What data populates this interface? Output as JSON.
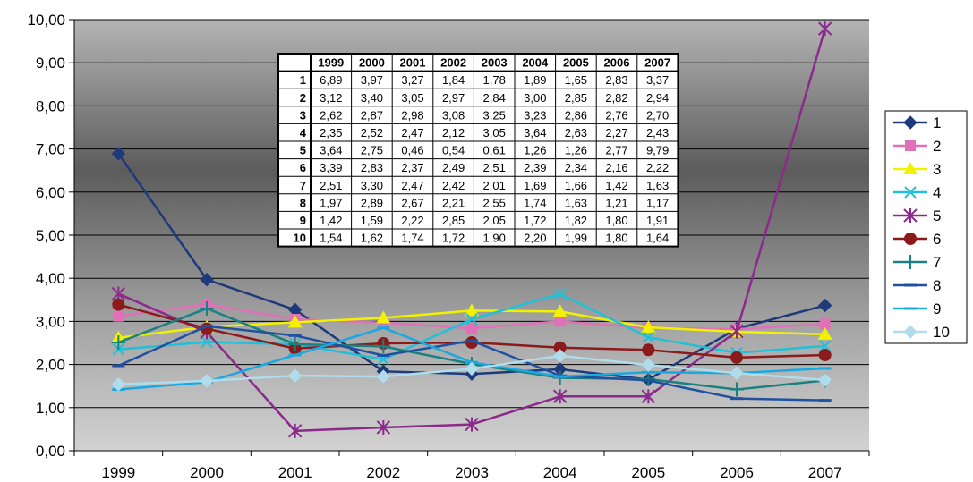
{
  "chart_data": {
    "type": "line",
    "categories": [
      "1999",
      "2000",
      "2001",
      "2002",
      "2003",
      "2004",
      "2005",
      "2006",
      "2007"
    ],
    "ylim": [
      0,
      10
    ],
    "yticks": [
      "0,00",
      "1,00",
      "2,00",
      "3,00",
      "4,00",
      "5,00",
      "6,00",
      "7,00",
      "8,00",
      "9,00",
      "10,00"
    ],
    "grid": true,
    "legend_position": "right",
    "series": [
      {
        "name": "1",
        "color": "#1F3A7A",
        "marker": "diamond",
        "values": [
          6.89,
          3.97,
          3.27,
          1.84,
          1.78,
          1.89,
          1.65,
          2.83,
          3.37
        ]
      },
      {
        "name": "2",
        "color": "#E070B8",
        "marker": "square",
        "values": [
          3.12,
          3.4,
          3.05,
          2.97,
          2.84,
          3.0,
          2.85,
          2.82,
          2.94
        ]
      },
      {
        "name": "3",
        "color": "#F2F200",
        "marker": "triangle",
        "values": [
          2.62,
          2.87,
          2.98,
          3.08,
          3.25,
          3.23,
          2.86,
          2.76,
          2.7
        ]
      },
      {
        "name": "4",
        "color": "#20C0D8",
        "marker": "x",
        "values": [
          2.35,
          2.52,
          2.47,
          2.12,
          3.05,
          3.64,
          2.63,
          2.27,
          2.43
        ]
      },
      {
        "name": "5",
        "color": "#8B2A8B",
        "marker": "asterisk",
        "values": [
          3.64,
          2.75,
          0.46,
          0.54,
          0.61,
          1.26,
          1.26,
          2.77,
          9.79
        ]
      },
      {
        "name": "6",
        "color": "#8B1A1A",
        "marker": "circle",
        "values": [
          3.39,
          2.83,
          2.37,
          2.49,
          2.51,
          2.39,
          2.34,
          2.16,
          2.22
        ]
      },
      {
        "name": "7",
        "color": "#1A8080",
        "marker": "plus",
        "values": [
          2.51,
          3.3,
          2.47,
          2.42,
          2.01,
          1.69,
          1.66,
          1.42,
          1.63
        ]
      },
      {
        "name": "8",
        "color": "#2050A0",
        "marker": "dash",
        "values": [
          1.97,
          2.89,
          2.67,
          2.21,
          2.55,
          1.74,
          1.63,
          1.21,
          1.17
        ]
      },
      {
        "name": "9",
        "color": "#1AA8E0",
        "marker": "dash",
        "values": [
          1.42,
          1.59,
          2.22,
          2.85,
          2.05,
          1.72,
          1.82,
          1.8,
          1.91
        ]
      },
      {
        "name": "10",
        "color": "#B0DCEB",
        "marker": "diamond",
        "values": [
          1.54,
          1.62,
          1.74,
          1.72,
          1.9,
          2.2,
          1.99,
          1.8,
          1.64
        ]
      }
    ],
    "table": {
      "header": [
        "",
        "1999",
        "2000",
        "2001",
        "2002",
        "2003",
        "2004",
        "2005",
        "2006",
        "2007"
      ],
      "rows": [
        [
          "1",
          "6,89",
          "3,97",
          "3,27",
          "1,84",
          "1,78",
          "1,89",
          "1,65",
          "2,83",
          "3,37"
        ],
        [
          "2",
          "3,12",
          "3,40",
          "3,05",
          "2,97",
          "2,84",
          "3,00",
          "2,85",
          "2,82",
          "2,94"
        ],
        [
          "3",
          "2,62",
          "2,87",
          "2,98",
          "3,08",
          "3,25",
          "3,23",
          "2,86",
          "2,76",
          "2,70"
        ],
        [
          "4",
          "2,35",
          "2,52",
          "2,47",
          "2,12",
          "3,05",
          "3,64",
          "2,63",
          "2,27",
          "2,43"
        ],
        [
          "5",
          "3,64",
          "2,75",
          "0,46",
          "0,54",
          "0,61",
          "1,26",
          "1,26",
          "2,77",
          "9,79"
        ],
        [
          "6",
          "3,39",
          "2,83",
          "2,37",
          "2,49",
          "2,51",
          "2,39",
          "2,34",
          "2,16",
          "2,22"
        ],
        [
          "7",
          "2,51",
          "3,30",
          "2,47",
          "2,42",
          "2,01",
          "1,69",
          "1,66",
          "1,42",
          "1,63"
        ],
        [
          "8",
          "1,97",
          "2,89",
          "2,67",
          "2,21",
          "2,55",
          "1,74",
          "1,63",
          "1,21",
          "1,17"
        ],
        [
          "9",
          "1,42",
          "1,59",
          "2,22",
          "2,85",
          "2,05",
          "1,72",
          "1,82",
          "1,80",
          "1,91"
        ],
        [
          "10",
          "1,54",
          "1,62",
          "1,74",
          "1,72",
          "1,90",
          "2,20",
          "1,99",
          "1,80",
          "1,64"
        ]
      ]
    }
  }
}
